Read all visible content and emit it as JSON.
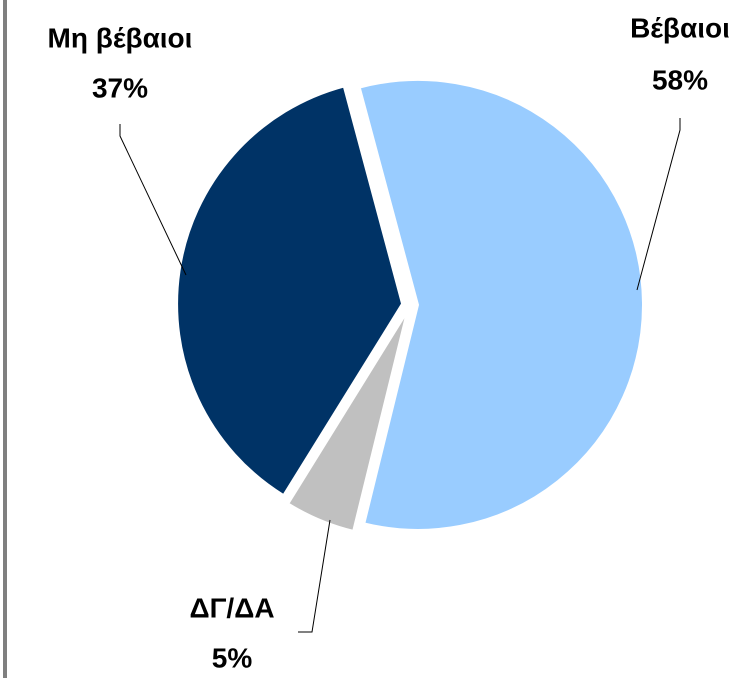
{
  "chart_data": {
    "type": "pie",
    "categories": [
      "Βέβαιοι",
      "ΔΓ/ΔΑ",
      "Μη βέβαιοι"
    ],
    "values": [
      58,
      5,
      37
    ],
    "value_labels": [
      "58%",
      "5%",
      "37%"
    ],
    "colors": [
      "#99ccff",
      "#c0c0c0",
      "#003366"
    ]
  }
}
